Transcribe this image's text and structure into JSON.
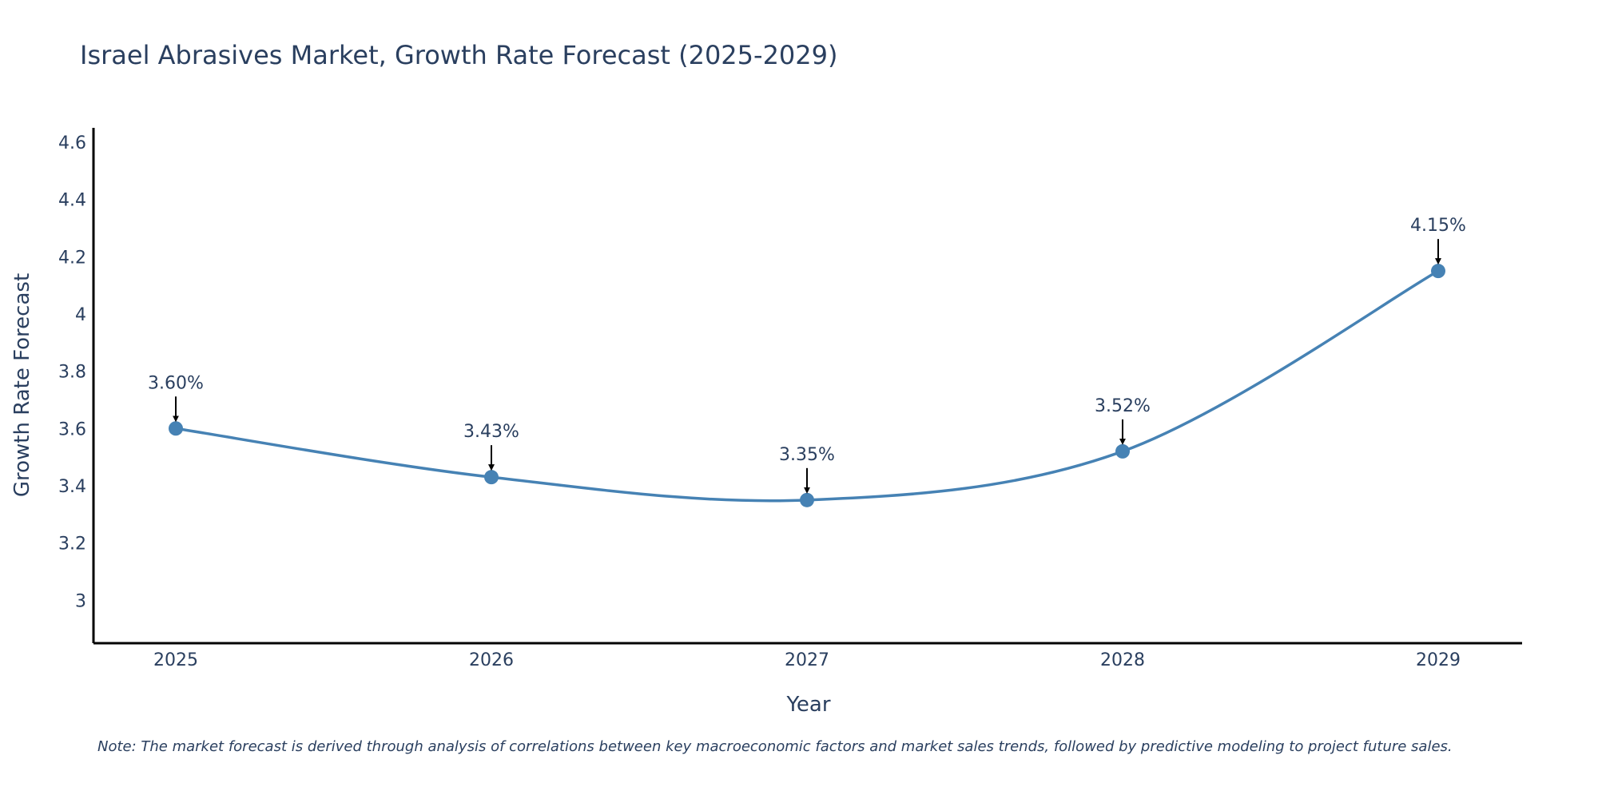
{
  "chart_data": {
    "type": "line",
    "title": "Israel Abrasives Market, Growth Rate Forecast (2025-2029)",
    "xlabel": "Year",
    "ylabel": "Growth Rate Forecast",
    "categories": [
      "2025",
      "2026",
      "2027",
      "2028",
      "2029"
    ],
    "series": [
      {
        "name": "Growth Rate Forecast",
        "values": [
          3.6,
          3.43,
          3.35,
          3.52,
          4.15
        ],
        "labels": [
          "3.60%",
          "3.43%",
          "3.35%",
          "3.52%",
          "4.15%"
        ],
        "color": "#4682b4"
      }
    ],
    "ylim": [
      2.85,
      4.65
    ],
    "yticks": [
      3,
      3.2,
      3.4,
      3.6,
      3.8,
      4,
      4.2,
      4.4,
      4.6
    ],
    "ytick_labels": [
      "3",
      "3.2",
      "3.4",
      "3.6",
      "3.8",
      "4",
      "4.2",
      "4.4",
      "4.6"
    ],
    "grid": false,
    "line_shape": "spline",
    "annotation_arrows": true,
    "note": "Note: The market forecast is derived through analysis of correlations between key macroeconomic factors and market sales trends, followed by predictive modeling to project future sales."
  }
}
